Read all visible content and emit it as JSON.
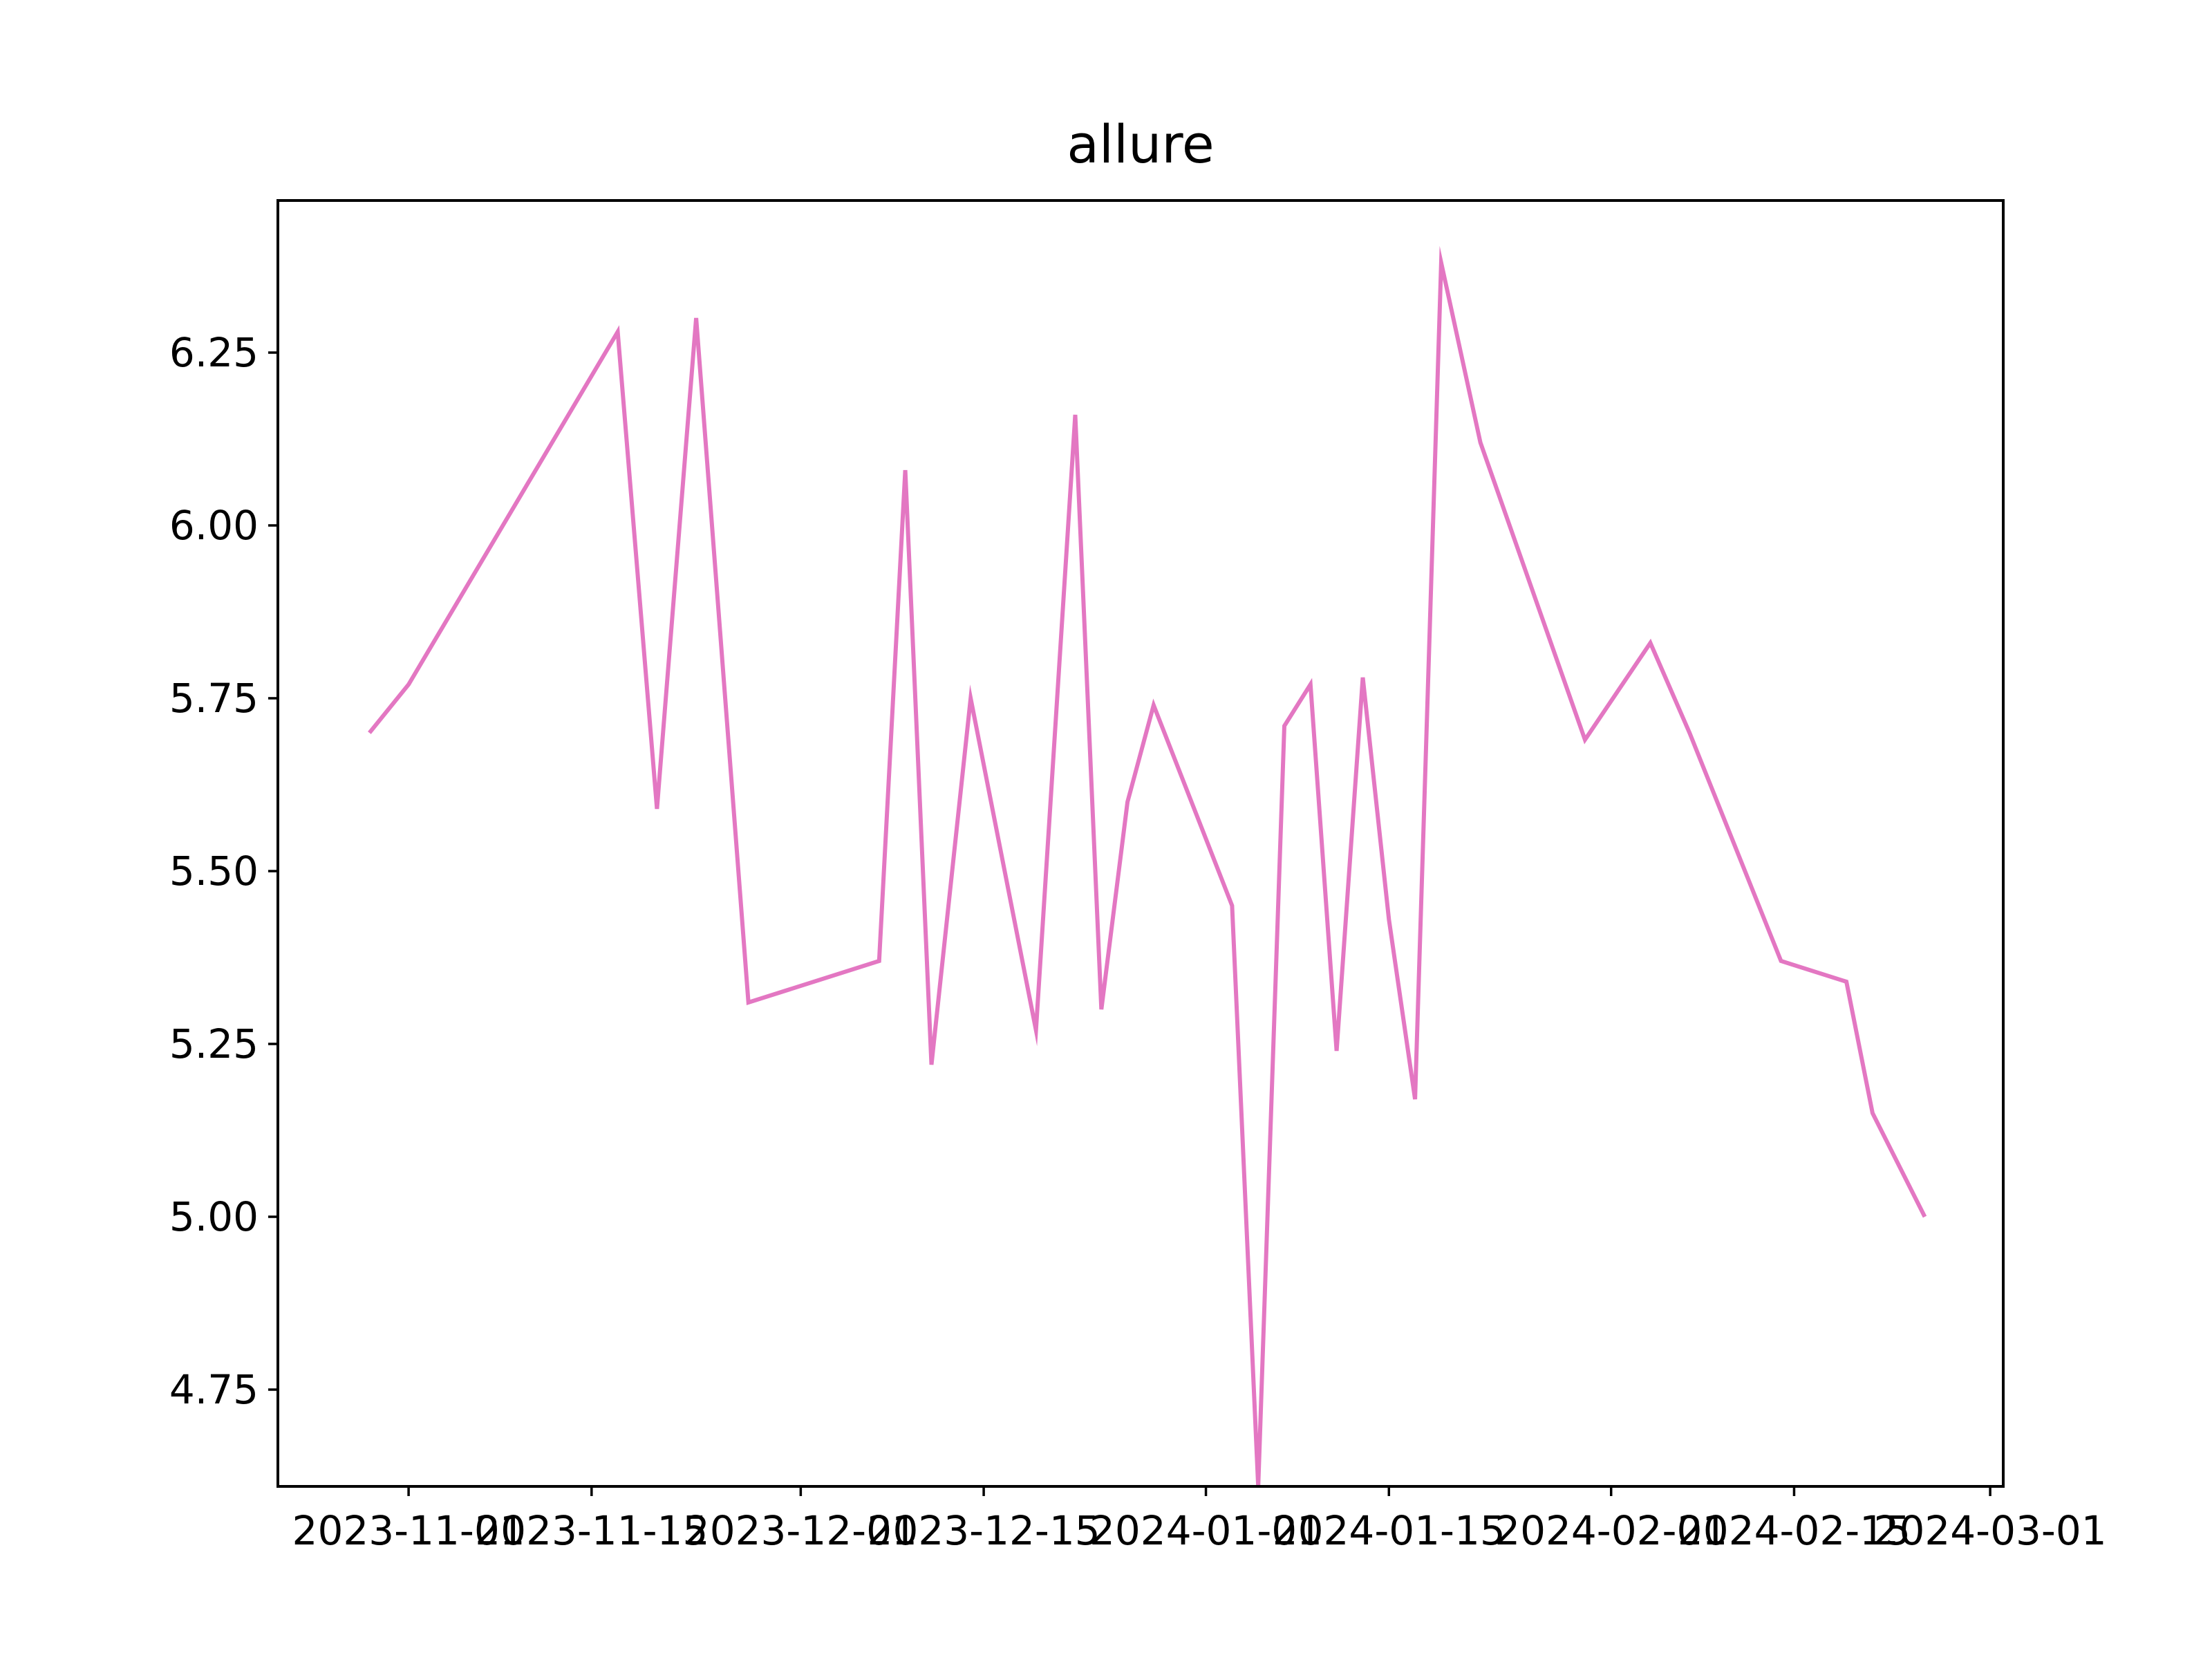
{
  "chart_data": {
    "type": "line",
    "title": "allure",
    "xlabel": "",
    "ylabel": "",
    "x_tick_labels": [
      "2023-11-01",
      "2023-11-15",
      "2023-12-01",
      "2023-12-15",
      "2024-01-01",
      "2024-01-15",
      "2024-02-01",
      "2024-02-15",
      "2024-03-01"
    ],
    "y_tick_labels": [
      "4.75",
      "5.00",
      "5.25",
      "5.50",
      "5.75",
      "6.00",
      "6.25"
    ],
    "xlim": [
      "2023-10-22",
      "2024-03-02"
    ],
    "ylim": [
      4.61,
      6.47
    ],
    "grid": false,
    "legend": "none",
    "series": [
      {
        "color": "#e377c2",
        "points": [
          {
            "x": "2023-10-29",
            "y": 5.7
          },
          {
            "x": "2023-11-01",
            "y": 5.77
          },
          {
            "x": "2023-11-17",
            "y": 6.28
          },
          {
            "x": "2023-11-20",
            "y": 5.59
          },
          {
            "x": "2023-11-23",
            "y": 6.3
          },
          {
            "x": "2023-11-27",
            "y": 5.31
          },
          {
            "x": "2023-12-07",
            "y": 5.37
          },
          {
            "x": "2023-12-09",
            "y": 6.08
          },
          {
            "x": "2023-12-11",
            "y": 5.22
          },
          {
            "x": "2023-12-14",
            "y": 5.75
          },
          {
            "x": "2023-12-19",
            "y": 5.27
          },
          {
            "x": "2023-12-22",
            "y": 6.16
          },
          {
            "x": "2023-12-24",
            "y": 5.3
          },
          {
            "x": "2023-12-26",
            "y": 5.6
          },
          {
            "x": "2023-12-28",
            "y": 5.74
          },
          {
            "x": "2024-01-03",
            "y": 5.45
          },
          {
            "x": "2024-01-05",
            "y": 4.61
          },
          {
            "x": "2024-01-07",
            "y": 5.71
          },
          {
            "x": "2024-01-09",
            "y": 5.77
          },
          {
            "x": "2024-01-11",
            "y": 5.24
          },
          {
            "x": "2024-01-13",
            "y": 5.78
          },
          {
            "x": "2024-01-15",
            "y": 5.43
          },
          {
            "x": "2024-01-17",
            "y": 5.17
          },
          {
            "x": "2024-01-19",
            "y": 6.38
          },
          {
            "x": "2024-01-22",
            "y": 6.12
          },
          {
            "x": "2024-01-30",
            "y": 5.69
          },
          {
            "x": "2024-02-04",
            "y": 5.83
          },
          {
            "x": "2024-02-07",
            "y": 5.7
          },
          {
            "x": "2024-02-14",
            "y": 5.37
          },
          {
            "x": "2024-02-19",
            "y": 5.34
          },
          {
            "x": "2024-02-21",
            "y": 5.15
          },
          {
            "x": "2024-02-25",
            "y": 5.0
          }
        ]
      }
    ]
  }
}
